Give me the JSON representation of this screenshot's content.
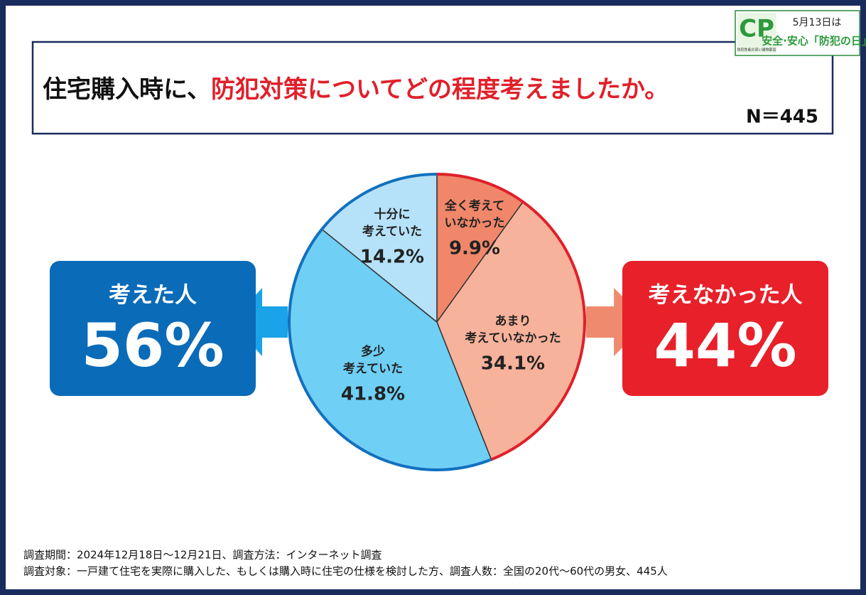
{
  "chart_data": {
    "type": "pie",
    "title": "住宅購入時に、",
    "title_highlight": "防犯対策についてどの程度考えましたか。",
    "subtitle": "N＝445",
    "categories": [
      [
        "全く考えて",
        "いなかった"
      ],
      [
        "あまり",
        "考えていなかった"
      ],
      [
        "多少",
        "考えていた"
      ],
      [
        "十分に",
        "考えていた"
      ]
    ],
    "values": [
      9.9,
      34.1,
      41.8,
      14.2
    ],
    "value_labels": [
      "9.9%",
      "34.1%",
      "41.8%",
      "14.2%"
    ],
    "colors": [
      "#f0876a",
      "#f7b29b",
      "#6fcff5",
      "#b5e2f9"
    ],
    "edge_colors": [
      "#e0202a",
      "#e0202a",
      "#1270bf",
      "#1270bf"
    ],
    "groups": [
      {
        "name": "考えた人",
        "value": 56,
        "value_label": "56%",
        "color": "#0a6bb8",
        "arrow_color": "#1aa3e8"
      },
      {
        "name": "考えなかった人",
        "value": 44,
        "value_label": "44%",
        "color": "#e8202a",
        "arrow_color": "#f08a6e"
      }
    ],
    "logo": {
      "mark": "CP",
      "caption": "防犯性能の高い建物部品",
      "line1": "5月13日は",
      "line2": "安全·安心「防犯の日」"
    },
    "notes": [
      "調査期間：2024年12月18日～12月21日、調査方法：インターネット調査",
      "調査対象：一戸建て住宅を実際に購入した、もしくは購入時に住宅の仕様を検討した方、調査人数：全国の20代～60代の男女、445人"
    ]
  }
}
